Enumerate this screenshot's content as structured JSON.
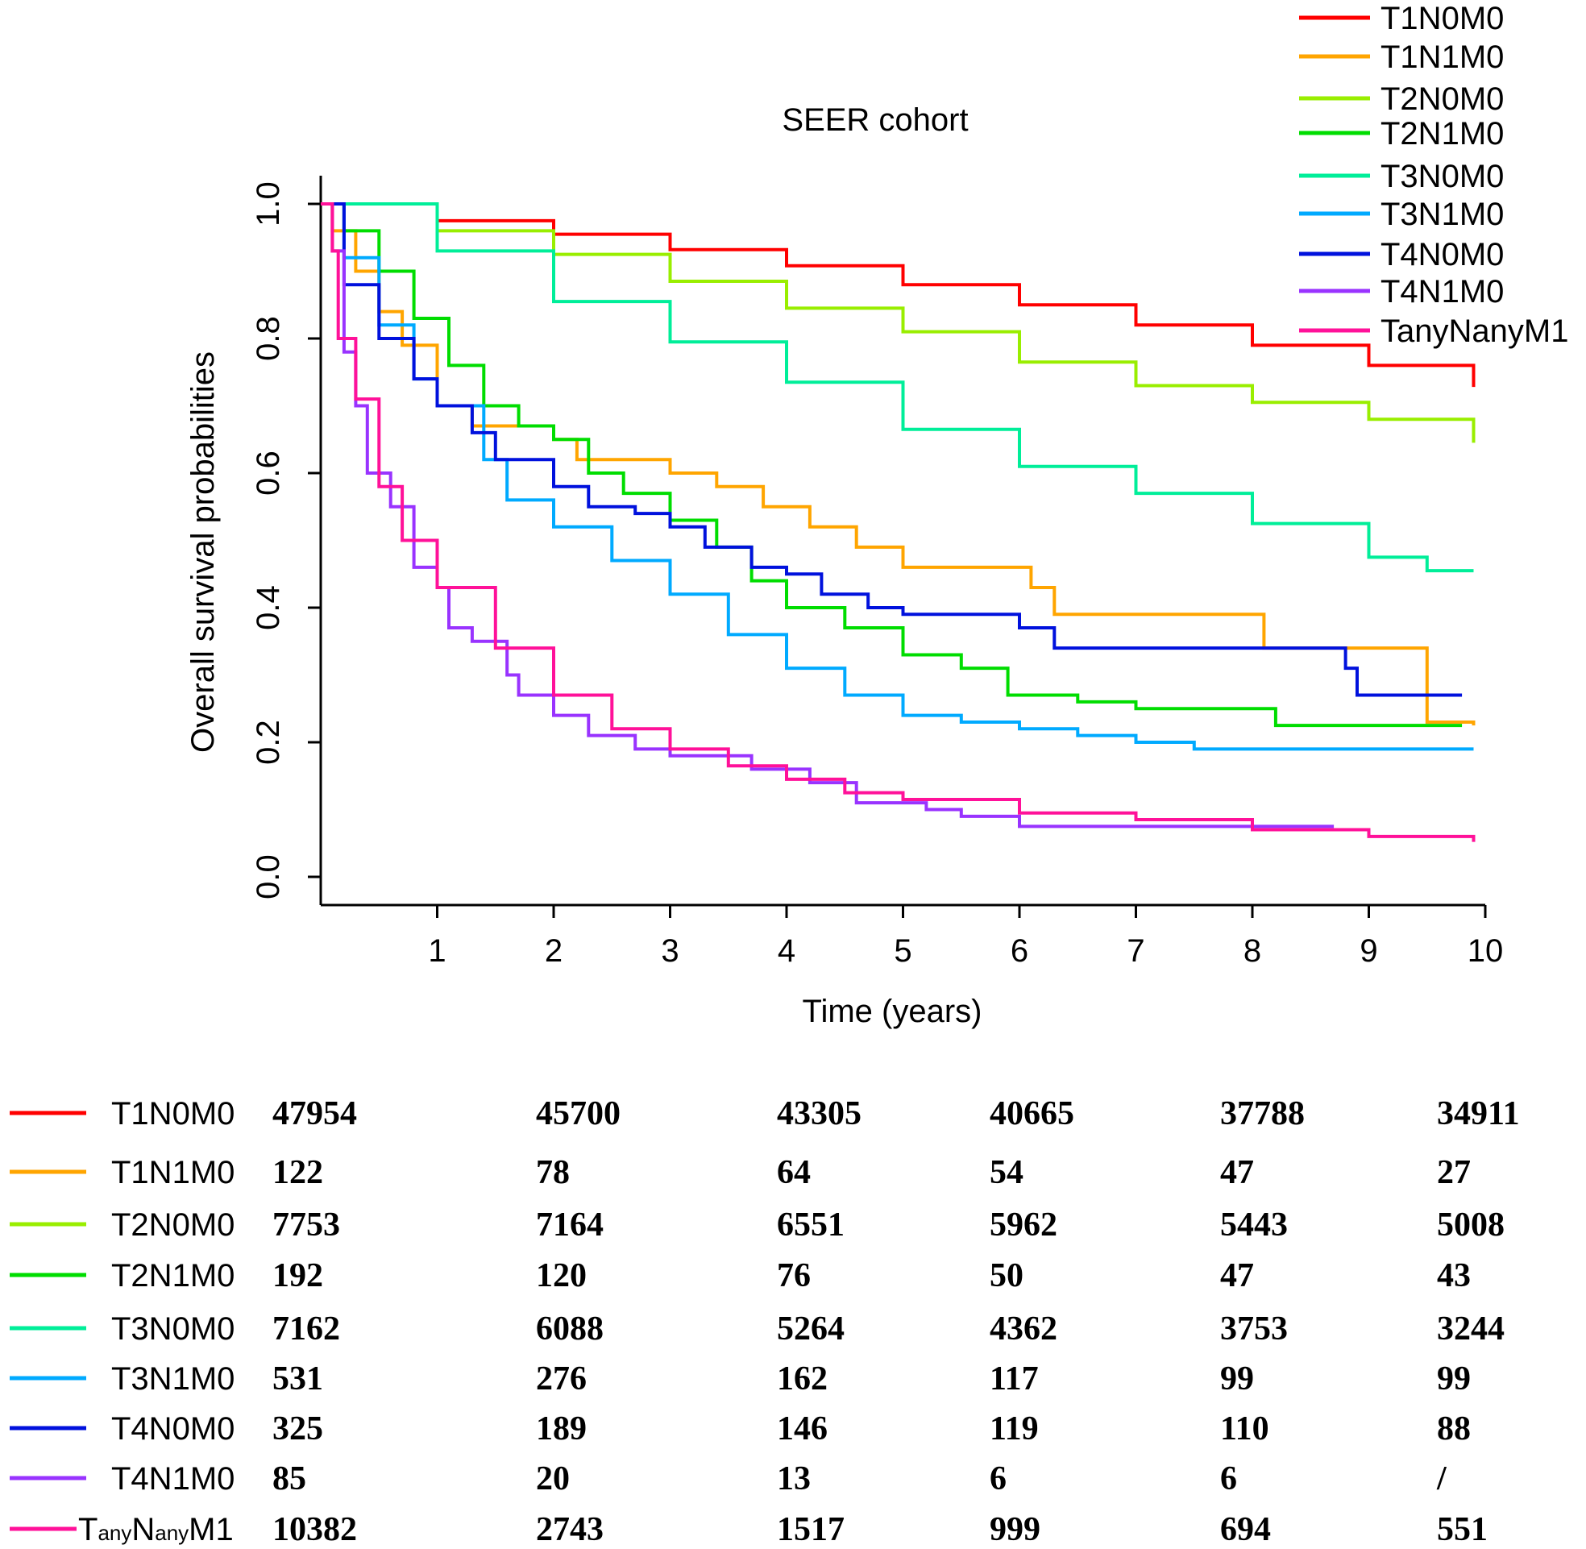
{
  "chart_data": {
    "type": "line",
    "step": true,
    "title": "SEER cohort",
    "xlabel": "Time (years)",
    "ylabel": "Overall survival probabilities",
    "xlim": [
      0,
      10
    ],
    "ylim": [
      0,
      1
    ],
    "xticks": [
      "1",
      "2",
      "3",
      "4",
      "5",
      "6",
      "7",
      "8",
      "9",
      "10"
    ],
    "yticks": [
      "0.0",
      "0.2",
      "0.4",
      "0.6",
      "0.8",
      "1.0"
    ],
    "grid": false,
    "legend_position": "top-right",
    "series": [
      {
        "name": "T1N0M0",
        "color": "#ff0000",
        "points": [
          [
            0,
            1
          ],
          [
            1,
            0.975
          ],
          [
            2,
            0.955
          ],
          [
            3,
            0.932
          ],
          [
            4,
            0.908
          ],
          [
            5,
            0.88
          ],
          [
            6,
            0.85
          ],
          [
            7,
            0.82
          ],
          [
            8,
            0.79
          ],
          [
            9,
            0.76
          ],
          [
            9.9,
            0.728
          ]
        ]
      },
      {
        "name": "T1N1M0",
        "color": "#ffa500",
        "points": [
          [
            0,
            1
          ],
          [
            0.1,
            0.96
          ],
          [
            0.3,
            0.9
          ],
          [
            0.5,
            0.84
          ],
          [
            0.7,
            0.79
          ],
          [
            1,
            0.7
          ],
          [
            1.3,
            0.67
          ],
          [
            1.6,
            0.67
          ],
          [
            2,
            0.65
          ],
          [
            2.2,
            0.62
          ],
          [
            2.6,
            0.62
          ],
          [
            3,
            0.6
          ],
          [
            3.4,
            0.58
          ],
          [
            3.8,
            0.55
          ],
          [
            4.2,
            0.52
          ],
          [
            4.6,
            0.49
          ],
          [
            5,
            0.46
          ],
          [
            5.6,
            0.46
          ],
          [
            6.1,
            0.43
          ],
          [
            6.3,
            0.39
          ],
          [
            8.1,
            0.39
          ],
          [
            8.1,
            0.34
          ],
          [
            9.5,
            0.34
          ],
          [
            9.5,
            0.23
          ],
          [
            9.9,
            0.225
          ]
        ]
      },
      {
        "name": "T2N0M0",
        "color": "#99ee00",
        "points": [
          [
            0,
            1
          ],
          [
            1,
            0.96
          ],
          [
            2,
            0.925
          ],
          [
            3,
            0.885
          ],
          [
            4,
            0.845
          ],
          [
            5,
            0.81
          ],
          [
            6,
            0.765
          ],
          [
            7,
            0.73
          ],
          [
            8,
            0.705
          ],
          [
            9,
            0.68
          ],
          [
            9.9,
            0.645
          ]
        ]
      },
      {
        "name": "T2N1M0",
        "color": "#00dd00",
        "points": [
          [
            0,
            1
          ],
          [
            0.2,
            0.96
          ],
          [
            0.5,
            0.9
          ],
          [
            0.8,
            0.83
          ],
          [
            1.1,
            0.76
          ],
          [
            1.4,
            0.7
          ],
          [
            1.7,
            0.67
          ],
          [
            2,
            0.65
          ],
          [
            2.3,
            0.6
          ],
          [
            2.6,
            0.57
          ],
          [
            3,
            0.53
          ],
          [
            3.4,
            0.49
          ],
          [
            3.7,
            0.44
          ],
          [
            4,
            0.4
          ],
          [
            4.5,
            0.37
          ],
          [
            5,
            0.33
          ],
          [
            5.5,
            0.31
          ],
          [
            5.9,
            0.27
          ],
          [
            6.5,
            0.26
          ],
          [
            7,
            0.25
          ],
          [
            8.1,
            0.25
          ],
          [
            8.2,
            0.225
          ],
          [
            9.8,
            0.225
          ]
        ]
      },
      {
        "name": "T3N0M0",
        "color": "#00ee99",
        "points": [
          [
            0,
            1
          ],
          [
            1,
            0.93
          ],
          [
            2,
            0.855
          ],
          [
            3,
            0.795
          ],
          [
            4,
            0.735
          ],
          [
            5,
            0.665
          ],
          [
            6,
            0.61
          ],
          [
            7,
            0.57
          ],
          [
            8,
            0.525
          ],
          [
            9,
            0.475
          ],
          [
            9.5,
            0.455
          ],
          [
            9.9,
            0.455
          ]
        ]
      },
      {
        "name": "T3N1M0",
        "color": "#00aaff",
        "points": [
          [
            0,
            1
          ],
          [
            0.2,
            0.92
          ],
          [
            0.5,
            0.82
          ],
          [
            0.8,
            0.74
          ],
          [
            1,
            0.7
          ],
          [
            1.4,
            0.62
          ],
          [
            1.6,
            0.56
          ],
          [
            2,
            0.52
          ],
          [
            2.5,
            0.47
          ],
          [
            3,
            0.42
          ],
          [
            3.5,
            0.36
          ],
          [
            4,
            0.31
          ],
          [
            4.5,
            0.27
          ],
          [
            5,
            0.24
          ],
          [
            5.5,
            0.23
          ],
          [
            6,
            0.22
          ],
          [
            6.5,
            0.21
          ],
          [
            7,
            0.2
          ],
          [
            7.5,
            0.19
          ],
          [
            9.9,
            0.19
          ]
        ]
      },
      {
        "name": "T4N0M0",
        "color": "#0011dd",
        "points": [
          [
            0,
            1
          ],
          [
            0.2,
            0.88
          ],
          [
            0.5,
            0.8
          ],
          [
            0.8,
            0.74
          ],
          [
            1,
            0.7
          ],
          [
            1.3,
            0.66
          ],
          [
            1.5,
            0.62
          ],
          [
            2,
            0.58
          ],
          [
            2.3,
            0.55
          ],
          [
            2.7,
            0.54
          ],
          [
            3,
            0.52
          ],
          [
            3.3,
            0.49
          ],
          [
            3.7,
            0.46
          ],
          [
            4,
            0.45
          ],
          [
            4.3,
            0.42
          ],
          [
            4.7,
            0.4
          ],
          [
            5,
            0.39
          ],
          [
            5.5,
            0.39
          ],
          [
            6,
            0.37
          ],
          [
            6.3,
            0.34
          ],
          [
            8.8,
            0.34
          ],
          [
            8.8,
            0.31
          ],
          [
            8.9,
            0.27
          ],
          [
            9.8,
            0.27
          ]
        ]
      },
      {
        "name": "T4N1M0",
        "color": "#9933ff",
        "points": [
          [
            0,
            1
          ],
          [
            0.1,
            0.93
          ],
          [
            0.2,
            0.78
          ],
          [
            0.3,
            0.7
          ],
          [
            0.4,
            0.6
          ],
          [
            0.6,
            0.55
          ],
          [
            0.8,
            0.46
          ],
          [
            1,
            0.43
          ],
          [
            1.1,
            0.37
          ],
          [
            1.3,
            0.35
          ],
          [
            1.6,
            0.3
          ],
          [
            1.7,
            0.27
          ],
          [
            2,
            0.24
          ],
          [
            2.3,
            0.21
          ],
          [
            2.7,
            0.19
          ],
          [
            3,
            0.18
          ],
          [
            3.5,
            0.18
          ],
          [
            3.7,
            0.16
          ],
          [
            4.2,
            0.14
          ],
          [
            4.6,
            0.11
          ],
          [
            5.2,
            0.1
          ],
          [
            5.5,
            0.09
          ],
          [
            6,
            0.075
          ],
          [
            8.7,
            0.075
          ]
        ]
      },
      {
        "name": "TanyNanyM1",
        "color": "#ff1199",
        "points": [
          [
            0,
            1
          ],
          [
            0.1,
            0.93
          ],
          [
            0.15,
            0.8
          ],
          [
            0.3,
            0.71
          ],
          [
            0.5,
            0.58
          ],
          [
            0.7,
            0.5
          ],
          [
            1,
            0.43
          ],
          [
            1.5,
            0.34
          ],
          [
            2,
            0.27
          ],
          [
            2.5,
            0.22
          ],
          [
            3,
            0.19
          ],
          [
            3.5,
            0.165
          ],
          [
            4,
            0.145
          ],
          [
            4.5,
            0.125
          ],
          [
            5,
            0.115
          ],
          [
            6,
            0.095
          ],
          [
            7,
            0.085
          ],
          [
            8,
            0.07
          ],
          [
            9,
            0.06
          ],
          [
            9.9,
            0.052
          ]
        ]
      }
    ],
    "risk_table": {
      "rows": [
        {
          "name": "T1N0M0",
          "color": "#ff0000",
          "values": [
            "47954",
            "45700",
            "43305",
            "40665",
            "37788",
            "34911"
          ]
        },
        {
          "name": "T1N1M0",
          "color": "#ffa500",
          "values": [
            "122",
            "78",
            "64",
            "54",
            "47",
            "27"
          ]
        },
        {
          "name": "T2N0M0",
          "color": "#99ee00",
          "values": [
            "7753",
            "7164",
            "6551",
            "5962",
            "5443",
            "5008"
          ]
        },
        {
          "name": "T2N1M0",
          "color": "#00dd00",
          "values": [
            "192",
            "120",
            "76",
            "50",
            "47",
            "43"
          ]
        },
        {
          "name": "T3N0M0",
          "color": "#00ee99",
          "values": [
            "7162",
            "6088",
            "5264",
            "4362",
            "3753",
            "3244"
          ]
        },
        {
          "name": "T3N1M0",
          "color": "#00aaff",
          "values": [
            "531",
            "276",
            "162",
            "117",
            "99",
            "99"
          ]
        },
        {
          "name": "T4N0M0",
          "color": "#0011dd",
          "values": [
            "325",
            "189",
            "146",
            "119",
            "110",
            "88"
          ]
        },
        {
          "name": "T4N1M0",
          "color": "#9933ff",
          "values": [
            "85",
            "20",
            "13",
            "6",
            "6",
            "/"
          ]
        },
        {
          "name": "TanyNanyM1",
          "color": "#ff1199",
          "values": [
            "10382",
            "2743",
            "1517",
            "999",
            "694",
            "551"
          ],
          "subscript_label": true
        }
      ]
    }
  }
}
